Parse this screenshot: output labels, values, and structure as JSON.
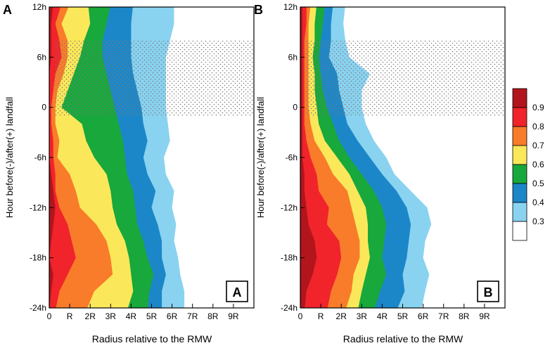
{
  "chart_data": [
    {
      "type": "heatmap",
      "panel_label": "A",
      "inset_label": "A",
      "xlabel": "Radius relative to the RMW",
      "ylabel": "Hour before(-)/after(+) landfall",
      "x_ticks": [
        "0",
        "R",
        "2R",
        "3R",
        "4R",
        "5R",
        "6R",
        "7R",
        "8R",
        "9R"
      ],
      "y_ticks": [
        "12h",
        "6h",
        "0",
        "-6h",
        "-12h",
        "-18h",
        "-24h"
      ],
      "xlim": [
        0,
        10
      ],
      "ylim": [
        -24,
        12
      ],
      "stippled_region": {
        "x_range": [
          0.3,
          10
        ],
        "hour_range": [
          -1,
          8
        ]
      },
      "hours": [
        12,
        10,
        8,
        6,
        4,
        2,
        0,
        -2,
        -4,
        -6,
        -8,
        -10,
        -12,
        -14,
        -16,
        -18,
        -20,
        -22,
        -24
      ],
      "contour_extent": {
        "level_0.3": [
          6.1,
          6.1,
          5.9,
          5.7,
          5.7,
          5.7,
          5.7,
          5.8,
          5.9,
          5.6,
          5.7,
          6.1,
          6.0,
          6.2,
          6.1,
          6.3,
          6.4,
          6.6,
          6.6
        ],
        "level_0.4": [
          4.1,
          4.0,
          4.0,
          4.0,
          4.1,
          4.3,
          4.5,
          4.6,
          4.8,
          4.6,
          4.8,
          5.2,
          5.0,
          5.3,
          5.5,
          5.5,
          5.7,
          5.5,
          5.5
        ],
        "level_0.5": [
          3.0,
          2.8,
          2.6,
          2.6,
          2.8,
          3.0,
          3.2,
          3.4,
          3.6,
          3.7,
          3.8,
          4.1,
          4.2,
          4.3,
          4.6,
          4.8,
          5.1,
          4.9,
          4.8
        ],
        "level_0.6": [
          1.9,
          2.0,
          1.7,
          1.5,
          1.2,
          0.9,
          0.6,
          1.6,
          1.8,
          2.2,
          2.8,
          3.0,
          3.1,
          3.3,
          3.7,
          3.9,
          4.0,
          4.1,
          3.8
        ],
        "level_0.7": [
          1.0,
          0.6,
          0.9,
          0.9,
          0.7,
          0.4,
          0.3,
          0.3,
          0.5,
          0.4,
          1.0,
          1.3,
          1.5,
          2.3,
          2.8,
          3.0,
          3.1,
          2.2,
          1.8
        ],
        "level_0.8": [
          0.6,
          0.3,
          0.5,
          0.6,
          0.3,
          0.2,
          0.1,
          0.1,
          0.2,
          0.2,
          0.3,
          0.3,
          0.5,
          0.9,
          1.1,
          1.3,
          0.9,
          0.5,
          0.3
        ],
        "level_0.9": [
          0.2,
          0.1,
          0.1,
          0.1,
          0.0,
          0.0,
          0.0,
          0.0,
          0.0,
          0.0,
          0.1,
          0.2,
          0.3,
          0.2,
          0.1,
          0.0,
          0.2,
          0.1,
          0.0
        ]
      }
    },
    {
      "type": "heatmap",
      "panel_label": "B",
      "inset_label": "B",
      "xlabel": "Radius relative to the RMW",
      "ylabel": "Hour before(-)/after(+) landfall",
      "x_ticks": [
        "0",
        "R",
        "2R",
        "3R",
        "4R",
        "5R",
        "6R",
        "7R",
        "8R",
        "9R"
      ],
      "y_ticks": [
        "12h",
        "6h",
        "0",
        "-6h",
        "-12h",
        "-18h",
        "-24h"
      ],
      "xlim": [
        0,
        10
      ],
      "ylim": [
        -24,
        12
      ],
      "stippled_region": {
        "x_range": [
          0.3,
          10
        ],
        "hour_range": [
          -1,
          8
        ]
      },
      "hours": [
        12,
        10,
        8,
        6,
        4,
        2,
        0,
        -2,
        -4,
        -6,
        -8,
        -10,
        -12,
        -14,
        -16,
        -18,
        -20,
        -22,
        -24
      ],
      "contour_extent": {
        "level_0.3": [
          2.2,
          2.1,
          2.2,
          2.4,
          3.4,
          3.0,
          3.0,
          3.2,
          3.6,
          4.2,
          4.6,
          5.4,
          6.2,
          6.4,
          6.1,
          6.0,
          6.3,
          6.1,
          5.9
        ],
        "level_0.4": [
          1.6,
          1.5,
          1.5,
          1.4,
          1.8,
          1.9,
          2.1,
          2.3,
          2.8,
          3.4,
          4.0,
          4.7,
          5.2,
          5.4,
          5.3,
          5.2,
          5.0,
          5.1,
          4.7
        ],
        "level_0.5": [
          1.2,
          1.1,
          1.0,
          0.9,
          1.0,
          1.1,
          1.3,
          1.6,
          1.9,
          2.4,
          3.0,
          3.6,
          4.0,
          4.2,
          4.1,
          4.0,
          4.2,
          3.9,
          3.6
        ],
        "level_0.6": [
          0.8,
          0.7,
          0.7,
          0.6,
          0.7,
          0.7,
          0.8,
          0.9,
          1.2,
          1.8,
          2.4,
          2.8,
          3.2,
          3.3,
          3.3,
          3.4,
          3.2,
          3.0,
          2.8
        ],
        "level_0.7": [
          0.5,
          0.4,
          0.4,
          0.4,
          0.4,
          0.4,
          0.4,
          0.5,
          0.7,
          1.2,
          1.6,
          2.3,
          2.5,
          2.7,
          2.9,
          2.9,
          2.6,
          2.5,
          2.2
        ],
        "level_0.8": [
          0.3,
          0.3,
          0.2,
          0.2,
          0.2,
          0.2,
          0.2,
          0.2,
          0.3,
          0.5,
          0.8,
          0.9,
          1.4,
          1.3,
          1.9,
          2.0,
          1.8,
          1.5,
          1.3
        ],
        "level_0.9": [
          0.1,
          0.1,
          0.1,
          0.1,
          0.1,
          0.1,
          0.1,
          0.1,
          0.1,
          0.1,
          0.2,
          0.2,
          0.3,
          0.4,
          0.7,
          0.8,
          0.6,
          0.3,
          0.2
        ]
      }
    }
  ],
  "colorbar": {
    "levels": [
      {
        "label": "0.9",
        "color": "#b2151c"
      },
      {
        "label": "0.8",
        "color": "#f0242a"
      },
      {
        "label": "0.7",
        "color": "#f97c2a"
      },
      {
        "label": "0.6",
        "color": "#fbe85a"
      },
      {
        "label": "0.5",
        "color": "#18a83c"
      },
      {
        "label": "0.4",
        "color": "#1c87c8"
      },
      {
        "label": "0.3",
        "color": "#89d3f1"
      },
      {
        "label": "",
        "color": "#ffffff"
      }
    ]
  }
}
